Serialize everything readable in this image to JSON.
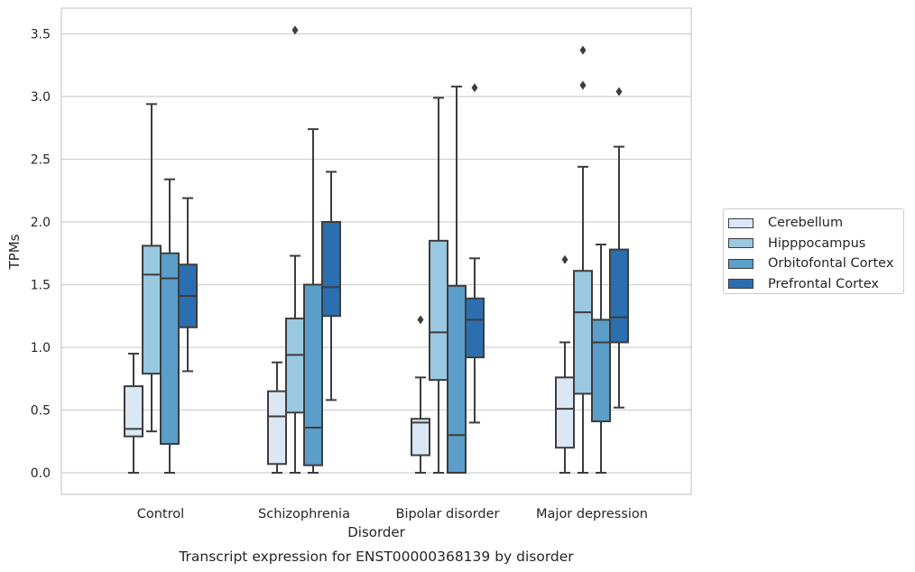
{
  "chart_data": {
    "type": "box",
    "title": "Transcript expression for ENST00000368139 by disorder",
    "xlabel": "Disorder",
    "ylabel": "TPMs",
    "ylim": [
      -0.17,
      3.71
    ],
    "yticks": [
      "0.0",
      "0.5",
      "1.0",
      "1.5",
      "2.0",
      "2.5",
      "3.0",
      "3.5"
    ],
    "grid": "horizontal",
    "legend_position": "right",
    "categories": [
      "Control",
      "Schizophrenia",
      "Bipolar disorder",
      "Major depression"
    ],
    "series": [
      {
        "name": "Cerebellum",
        "color": "#dae8f6",
        "boxes": [
          {
            "q1": 0.29,
            "median": 0.35,
            "q3": 0.69,
            "whislo": 0.0,
            "whishi": 0.95,
            "fliers": []
          },
          {
            "q1": 0.07,
            "median": 0.45,
            "q3": 0.65,
            "whislo": 0.0,
            "whishi": 0.88,
            "fliers": []
          },
          {
            "q1": 0.14,
            "median": 0.4,
            "q3": 0.43,
            "whislo": 0.0,
            "whishi": 0.76,
            "fliers": [
              1.22
            ]
          },
          {
            "q1": 0.2,
            "median": 0.51,
            "q3": 0.76,
            "whislo": 0.0,
            "whishi": 1.04,
            "fliers": [
              1.7
            ]
          }
        ]
      },
      {
        "name": "Hipppocampus",
        "color": "#9ac8e0",
        "boxes": [
          {
            "q1": 0.79,
            "median": 1.58,
            "q3": 1.81,
            "whislo": 0.33,
            "whishi": 2.94,
            "fliers": []
          },
          {
            "q1": 0.48,
            "median": 0.94,
            "q3": 1.23,
            "whislo": 0.0,
            "whishi": 1.73,
            "fliers": [
              3.53
            ]
          },
          {
            "q1": 0.74,
            "median": 1.12,
            "q3": 1.85,
            "whislo": 0.0,
            "whishi": 2.99,
            "fliers": []
          },
          {
            "q1": 0.63,
            "median": 1.28,
            "q3": 1.61,
            "whislo": 0.0,
            "whishi": 2.44,
            "fliers": [
              3.09,
              3.37
            ]
          }
        ]
      },
      {
        "name": "Orbitofontal Cortex",
        "color": "#5a9ec9",
        "boxes": [
          {
            "q1": 0.23,
            "median": 1.55,
            "q3": 1.75,
            "whislo": 0.0,
            "whishi": 2.34,
            "fliers": []
          },
          {
            "q1": 0.06,
            "median": 0.36,
            "q3": 1.5,
            "whislo": 0.0,
            "whishi": 2.74,
            "fliers": []
          },
          {
            "q1": 0.0,
            "median": 0.3,
            "q3": 1.49,
            "whislo": 0.0,
            "whishi": 3.08,
            "fliers": []
          },
          {
            "q1": 0.41,
            "median": 1.04,
            "q3": 1.22,
            "whislo": 0.0,
            "whishi": 1.82,
            "fliers": []
          }
        ]
      },
      {
        "name": "Prefrontal Cortex",
        "color": "#2c6fb0",
        "boxes": [
          {
            "q1": 1.16,
            "median": 1.41,
            "q3": 1.66,
            "whislo": 0.81,
            "whishi": 2.19,
            "fliers": []
          },
          {
            "q1": 1.25,
            "median": 1.48,
            "q3": 2.0,
            "whislo": 0.58,
            "whishi": 2.4,
            "fliers": []
          },
          {
            "q1": 0.92,
            "median": 1.22,
            "q3": 1.39,
            "whislo": 0.4,
            "whishi": 1.71,
            "fliers": [
              3.07
            ]
          },
          {
            "q1": 1.04,
            "median": 1.24,
            "q3": 1.78,
            "whislo": 0.52,
            "whishi": 2.6,
            "fliers": [
              3.04
            ]
          }
        ]
      }
    ]
  }
}
